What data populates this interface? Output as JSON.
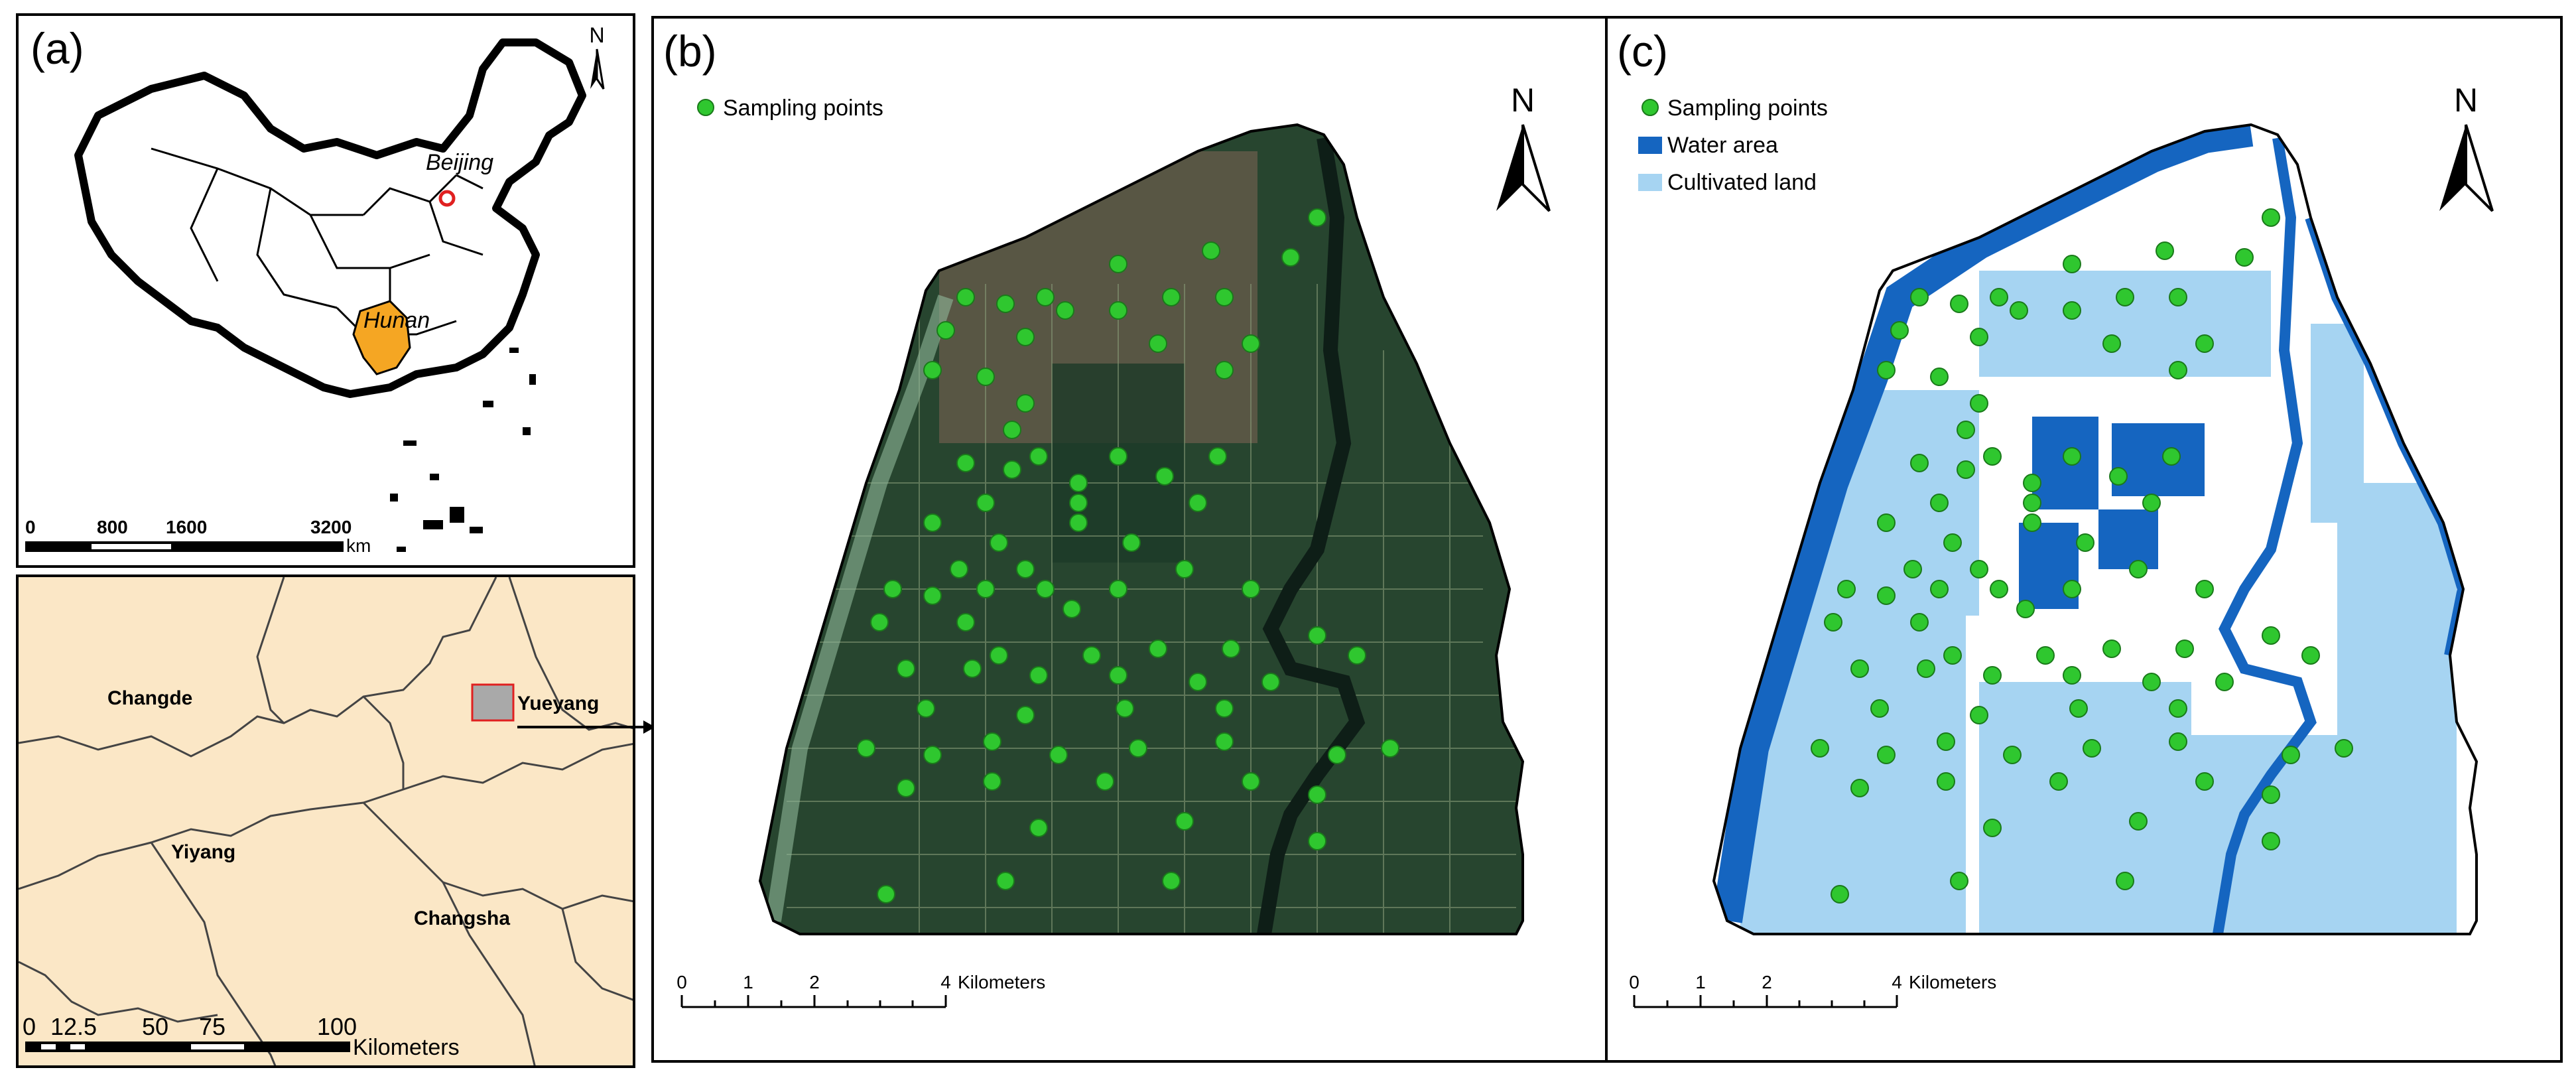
{
  "panels": {
    "a": {
      "label": "(a)",
      "china": {
        "north": "N",
        "places": {
          "beijing": "Beijing",
          "hunan": "Hunan"
        },
        "scale": {
          "ticks": [
            "0",
            "800",
            "1600",
            "3200"
          ],
          "unit": "km"
        }
      },
      "hunan_map": {
        "places": {
          "changde": "Changde",
          "yueyang": "Yueyang",
          "yiyang": "Yiyang",
          "changsha": "Changsha"
        },
        "scale": {
          "ticks": [
            "0",
            "12.5",
            "50",
            "75",
            "100"
          ],
          "unit": "Kilometers"
        }
      }
    },
    "b": {
      "label": "(b)",
      "legend": {
        "sampling": "Sampling points"
      },
      "north": "N",
      "scale": {
        "ticks": [
          "0",
          "1",
          "2",
          "4"
        ],
        "unit": "Kilometers"
      }
    },
    "c": {
      "label": "(c)",
      "legend": {
        "sampling": "Sampling points",
        "water": "Water area",
        "cultivated": "Cultivated land"
      },
      "north": "N",
      "scale": {
        "ticks": [
          "0",
          "1",
          "2",
          "4"
        ],
        "unit": "Kilometers"
      }
    }
  },
  "colors": {
    "hunan_fill": "#f5a623",
    "beijing_marker": "#e02020",
    "region_bg": "#fbe7c6",
    "yueyang_box_fill": "#a9a9a9",
    "yueyang_box_stroke": "#e02020",
    "sample_point": "#2fc72f",
    "water": "#1565c0",
    "cultivated": "#a6d4f2",
    "satellite_dark": "#27452f"
  }
}
